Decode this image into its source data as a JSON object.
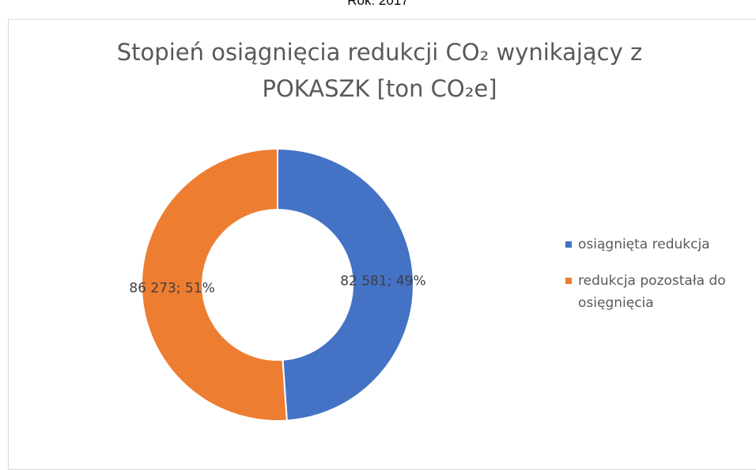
{
  "chart_data": {
    "type": "donut",
    "subtitle": "Rok: 2017",
    "title": "Stopień osiągnięcia redukcji CO₂ wynikający z POKASZK [ton CO₂e]",
    "series": [
      {
        "name": "osiągnięta redukcja",
        "color": "#4472c4"
      },
      {
        "name": "redukcja pozostała do osięgnięcia",
        "color": "#ed7d31"
      }
    ],
    "values": [
      82581,
      86273
    ],
    "value_labels": [
      "82 581; 49%",
      "86 273; 51%"
    ],
    "legend": "right"
  }
}
